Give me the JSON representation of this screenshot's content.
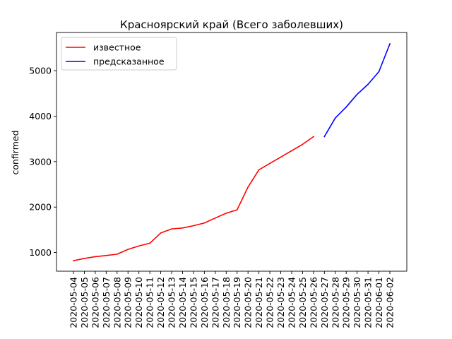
{
  "chart_data": {
    "type": "line",
    "title": "Красноярский край (Всего заболевших)",
    "xlabel": "",
    "ylabel": "confirmed",
    "ylim": [
      590,
      5840
    ],
    "yticks": [
      1000,
      2000,
      3000,
      4000,
      5000
    ],
    "grid": false,
    "legend_position": "top-left",
    "categories": [
      "2020-05-04",
      "2020-05-05",
      "2020-05-06",
      "2020-05-07",
      "2020-05-08",
      "2020-05-09",
      "2020-05-10",
      "2020-05-11",
      "2020-05-12",
      "2020-05-13",
      "2020-05-14",
      "2020-05-15",
      "2020-05-16",
      "2020-05-17",
      "2020-05-18",
      "2020-05-19",
      "2020-05-20",
      "2020-05-21",
      "2020-05-22",
      "2020-05-23",
      "2020-05-24",
      "2020-05-25",
      "2020-05-26",
      "2020-05-27",
      "2020-05-28",
      "2020-05-29",
      "2020-05-30",
      "2020-05-31",
      "2020-06-01",
      "2020-06-02"
    ],
    "series": [
      {
        "name": "известное",
        "color": "#ff0000",
        "x": [
          "2020-05-04",
          "2020-05-05",
          "2020-05-06",
          "2020-05-07",
          "2020-05-08",
          "2020-05-09",
          "2020-05-10",
          "2020-05-11",
          "2020-05-12",
          "2020-05-13",
          "2020-05-14",
          "2020-05-15",
          "2020-05-16",
          "2020-05-17",
          "2020-05-18",
          "2020-05-19",
          "2020-05-20",
          "2020-05-21",
          "2020-05-22",
          "2020-05-23",
          "2020-05-24",
          "2020-05-25",
          "2020-05-26"
        ],
        "values": [
          820,
          870,
          910,
          935,
          965,
          1070,
          1145,
          1205,
          1430,
          1520,
          1540,
          1590,
          1650,
          1760,
          1865,
          1940,
          2440,
          2820,
          2960,
          3100,
          3240,
          3380,
          3550
        ]
      },
      {
        "name": "предсказанное",
        "color": "#0000ff",
        "x": [
          "2020-05-27",
          "2020-05-28",
          "2020-05-29",
          "2020-05-30",
          "2020-05-31",
          "2020-06-01",
          "2020-06-02"
        ],
        "values": [
          3550,
          3960,
          4200,
          4480,
          4700,
          4980,
          5590
        ]
      }
    ]
  }
}
